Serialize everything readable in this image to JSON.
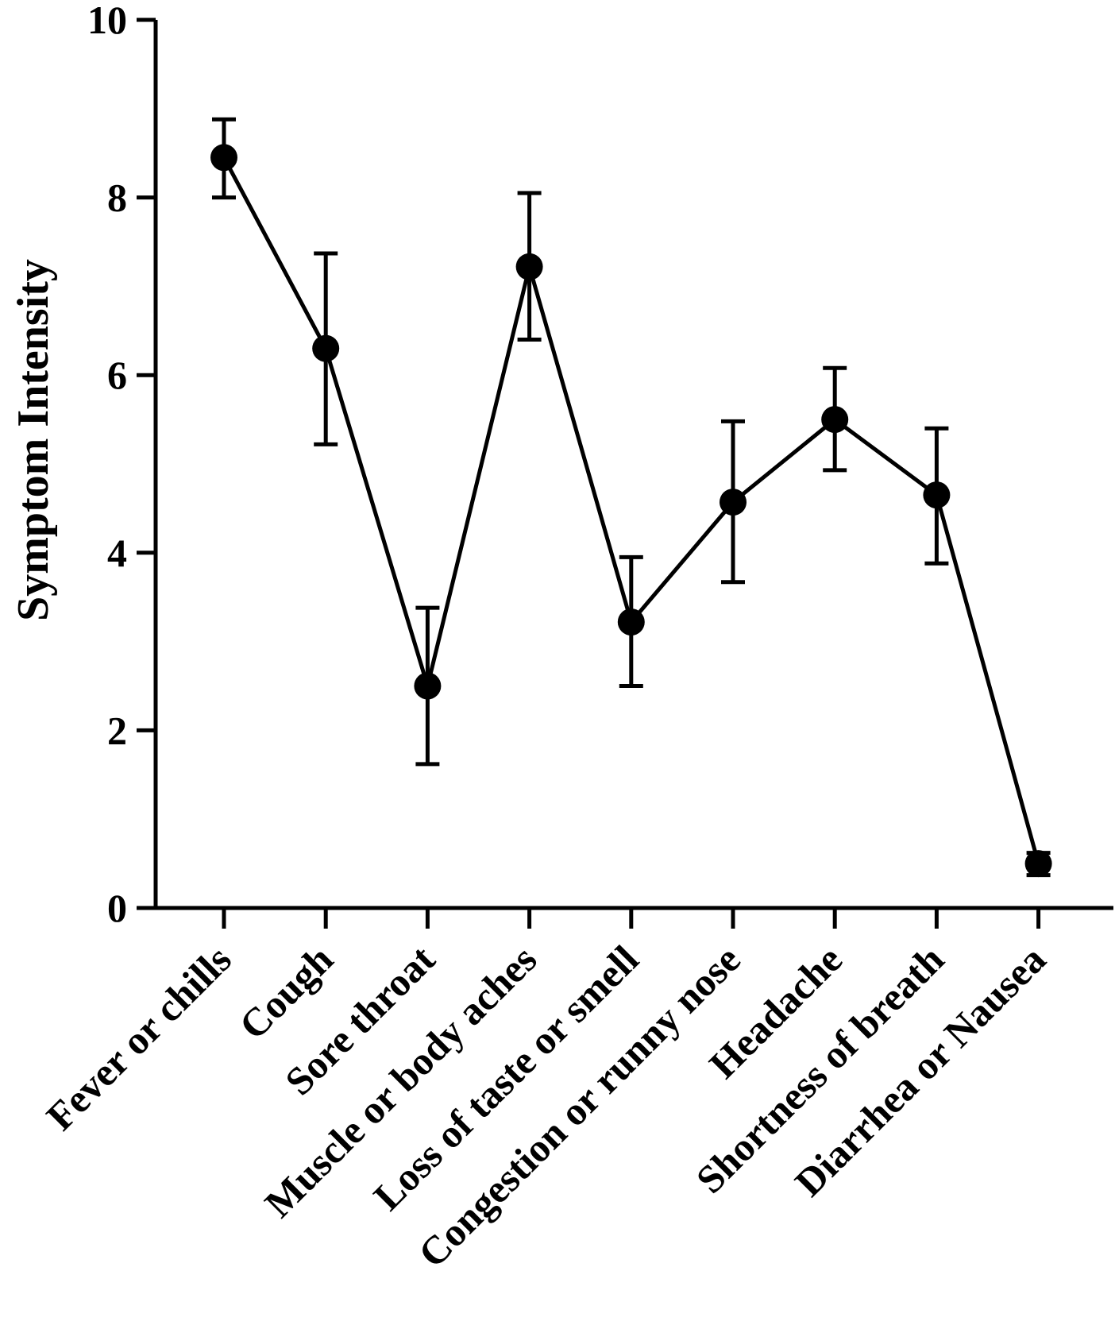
{
  "chart_data": {
    "type": "line",
    "title": "",
    "xlabel": "",
    "ylabel": "Symptom Intensity",
    "ylim": [
      0,
      10
    ],
    "yticks": [
      0,
      2,
      4,
      6,
      8,
      10
    ],
    "categories": [
      "Fever or chills",
      "Cough",
      "Sore throat",
      "Muscle or body aches",
      "Loss of taste or smell",
      "Congestion or runny nose",
      "Headache",
      "Shortness of breath",
      "Diarrhea or Nausea"
    ],
    "series": [
      {
        "name": "Symptom Intensity",
        "values": [
          8.45,
          6.3,
          2.5,
          7.22,
          3.22,
          4.57,
          5.5,
          4.65,
          0.5
        ],
        "error_low": [
          8.0,
          5.22,
          1.62,
          6.4,
          2.5,
          3.67,
          4.93,
          3.88,
          0.37
        ],
        "error_high": [
          8.88,
          7.37,
          3.38,
          8.05,
          3.95,
          5.48,
          6.08,
          5.4,
          0.62
        ]
      }
    ],
    "grid": false,
    "legend": "none"
  }
}
